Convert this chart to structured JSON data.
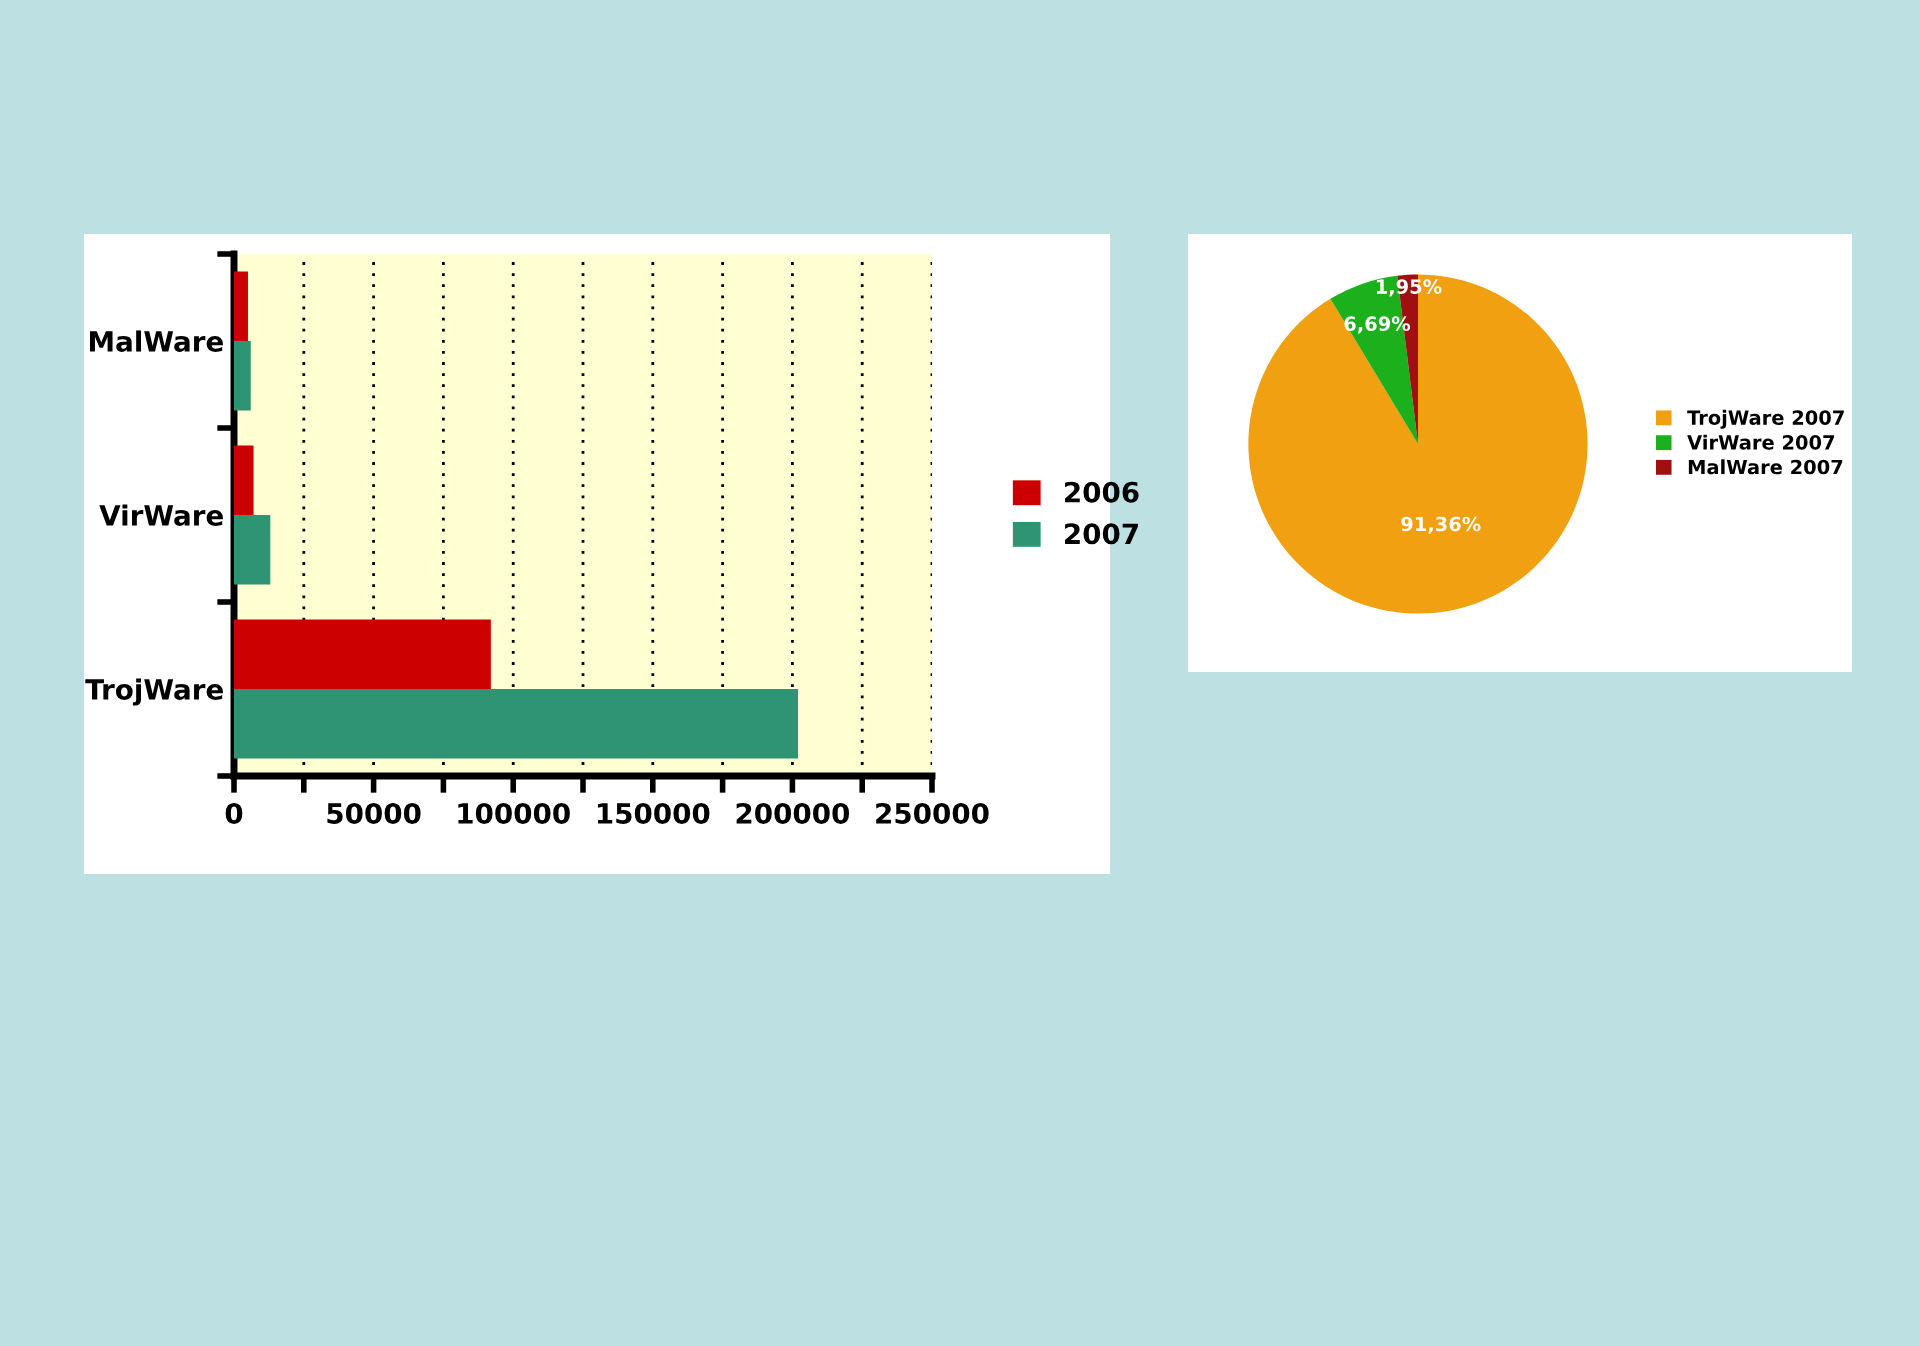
{
  "chart_data": [
    {
      "type": "bar",
      "orientation": "horizontal",
      "categories": [
        "MalWare",
        "VirWare",
        "TrojWare"
      ],
      "series": [
        {
          "name": "2006",
          "color": "#cc0000",
          "values": [
            5000,
            7000,
            92000
          ]
        },
        {
          "name": "2007",
          "color": "#2e9474",
          "values": [
            6000,
            13000,
            202000
          ]
        }
      ],
      "xlim": [
        0,
        250000
      ],
      "xticks": [
        0,
        {
          "value": 25000,
          "label": null
        },
        50000,
        {
          "value": 75000,
          "label": null
        },
        100000,
        {
          "value": 125000,
          "label": null
        },
        150000,
        {
          "value": 175000,
          "label": null
        },
        200000,
        {
          "value": 225000,
          "label": null
        },
        250000
      ],
      "grid": "x",
      "legend": "right"
    },
    {
      "type": "pie",
      "categories": [
        "TrojWare 2007",
        "VirWare 2007",
        "MalWare 2007"
      ],
      "values": [
        91.36,
        6.69,
        1.95
      ],
      "colors": [
        "#f0a010",
        "#1cb01c",
        "#a01010"
      ],
      "value_labels": [
        "91,36%",
        "6,69%",
        "1,95%"
      ],
      "legend": "right"
    }
  ]
}
